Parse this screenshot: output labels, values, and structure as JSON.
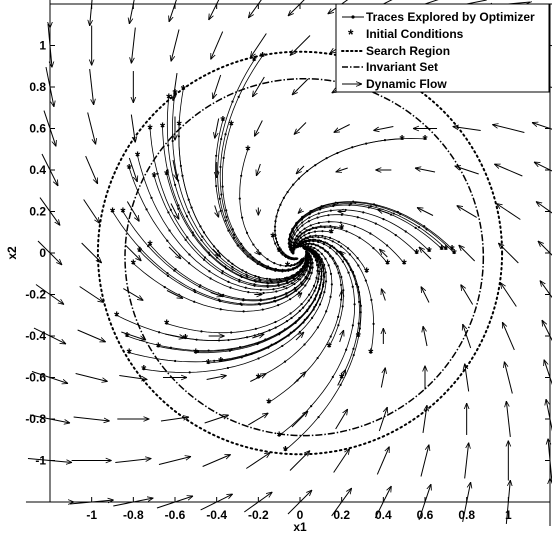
{
  "chart_data": {
    "type": "line",
    "title": "",
    "xlabel": "x1",
    "ylabel": "x2",
    "xlim": [
      -1.2,
      1.2
    ],
    "ylim": [
      -1.2,
      1.2
    ],
    "xticks": [
      -1,
      -0.8,
      -0.6,
      -0.4,
      -0.2,
      0,
      0.2,
      0.4,
      0.6,
      0.8,
      1
    ],
    "yticks": [
      -1,
      -0.8,
      -0.6,
      -0.4,
      -0.2,
      0,
      0.2,
      0.4,
      0.6,
      0.8,
      1
    ],
    "xtick_labels": [
      "-1",
      "-0.8",
      "-0.6",
      "-0.4",
      "-0.2",
      "0",
      "0.2",
      "0.4",
      "0.6",
      "0.8",
      "1"
    ],
    "ytick_labels": [
      "-1",
      "-0.8",
      "-0.6",
      "-0.4",
      "-0.2",
      "0",
      "0.2",
      "0.4",
      "0.6",
      "0.8",
      "1"
    ],
    "grid": false,
    "legend_position": "top-right",
    "legend": [
      {
        "label": "Traces Explored by Optimizer",
        "style": "line-dot"
      },
      {
        "label": "Initial Conditions",
        "style": "asterisk"
      },
      {
        "label": "Search Region",
        "style": "dotted"
      },
      {
        "label": "Invariant Set",
        "style": "dashdot"
      },
      {
        "label": "Dynamic Flow",
        "style": "arrow"
      }
    ],
    "search_region": {
      "center": [
        0,
        0
      ],
      "radius": 0.97
    },
    "invariant_set": {
      "center": [
        0.02,
        -0.02
      ],
      "rx": 0.86,
      "ry": 0.86
    },
    "dynamic_flow": {
      "grid_min": -1.2,
      "grid_max": 1.2,
      "grid_step": 0.2,
      "system": "dx1 = -x1 - x2 ; dx2 = x1 - x2 (stable spiral)"
    },
    "initial_conditions": [
      [
        -0.18,
        0.95
      ],
      [
        -0.22,
        0.93
      ],
      [
        -0.56,
        0.79
      ],
      [
        -0.6,
        0.77
      ],
      [
        -0.63,
        0.75
      ],
      [
        -0.58,
        0.62
      ],
      [
        -0.66,
        0.61
      ],
      [
        -0.72,
        0.6
      ],
      [
        -0.33,
        0.62
      ],
      [
        -0.37,
        0.64
      ],
      [
        -0.82,
        0.41
      ],
      [
        -0.78,
        0.47
      ],
      [
        -0.7,
        0.37
      ],
      [
        -0.64,
        0.38
      ],
      [
        -0.85,
        0.2
      ],
      [
        -0.9,
        0.2
      ],
      [
        -0.72,
        0.04
      ],
      [
        -0.8,
        -0.05
      ],
      [
        -0.77,
        0.01
      ],
      [
        -0.88,
        -0.3
      ],
      [
        -0.83,
        -0.4
      ],
      [
        -0.82,
        -0.48
      ],
      [
        -0.75,
        -0.56
      ],
      [
        -0.68,
        -0.45
      ],
      [
        -0.64,
        -0.34
      ],
      [
        -0.55,
        -0.41
      ],
      [
        -0.5,
        -0.48
      ],
      [
        -0.44,
        -0.53
      ],
      [
        -0.38,
        -0.52
      ],
      [
        -0.2,
        -0.6
      ],
      [
        -0.15,
        -0.72
      ],
      [
        -0.1,
        -0.88
      ],
      [
        -0.07,
        -0.95
      ],
      [
        0.14,
        -0.45
      ],
      [
        0.2,
        -0.6
      ],
      [
        0.28,
        -0.4
      ],
      [
        0.34,
        -0.48
      ],
      [
        0.32,
        -0.09
      ],
      [
        0.42,
        -0.05
      ],
      [
        0.5,
        -0.05
      ],
      [
        0.56,
        0
      ],
      [
        0.62,
        0.01
      ],
      [
        0.68,
        0.02
      ],
      [
        0.73,
        0.02
      ],
      [
        0.74,
        0
      ],
      [
        0.49,
        0.55
      ],
      [
        0.6,
        0.55
      ],
      [
        0.7,
        0.02
      ],
      [
        -0.13,
        0.08
      ],
      [
        -0.1,
        0.01
      ],
      [
        -0.06,
        -0.06
      ],
      [
        0.2,
        0.12
      ],
      [
        0.15,
        0.1
      ],
      [
        -0.25,
        0.5
      ]
    ]
  }
}
